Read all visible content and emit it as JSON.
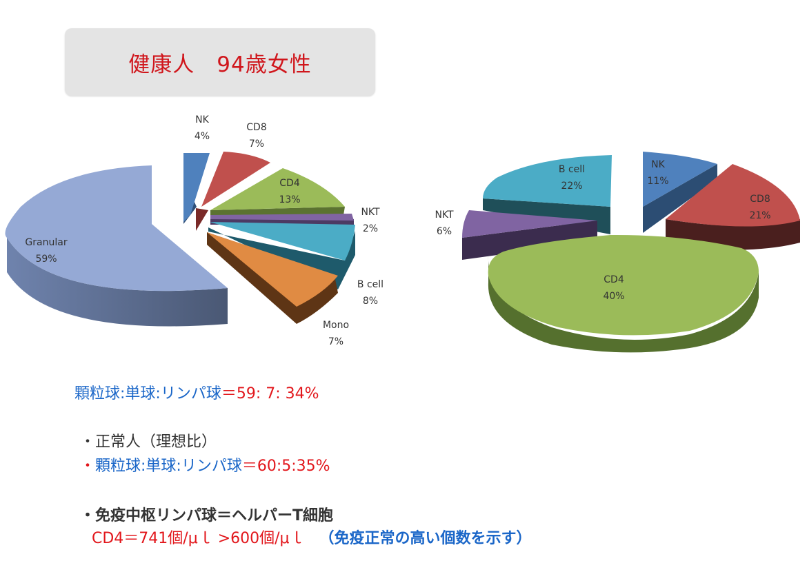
{
  "title": "健康人　94歳女性",
  "chart_data": [
    {
      "type": "pie",
      "slices": [
        {
          "name": "NK",
          "label": "4%",
          "value": 4,
          "color": "#4f81bd"
        },
        {
          "name": "CD8",
          "label": "7%",
          "value": 7,
          "color": "#c0504d"
        },
        {
          "name": "CD4",
          "label": "13%",
          "value": 13,
          "color": "#9bbb59"
        },
        {
          "name": "NKT",
          "label": "2%",
          "value": 2,
          "color": "#8064a2"
        },
        {
          "name": "B cell",
          "label": "8%",
          "value": 8,
          "color": "#4bacc6"
        },
        {
          "name": "Mono",
          "label": "7%",
          "value": 7,
          "color": "#f79646"
        },
        {
          "name": "Granular",
          "label": "59%",
          "value": 59,
          "color": "#95a9d5"
        }
      ]
    },
    {
      "type": "pie",
      "slices": [
        {
          "name": "NK",
          "label": "11%",
          "value": 11,
          "color": "#4f81bd"
        },
        {
          "name": "CD8",
          "label": "21%",
          "value": 21,
          "color": "#c0504d"
        },
        {
          "name": "CD4",
          "label": "40%",
          "value": 40,
          "color": "#9bbb59"
        },
        {
          "name": "NKT",
          "label": "6%",
          "value": 6,
          "color": "#8064a2"
        },
        {
          "name": "B cell",
          "label": "22%",
          "value": 22,
          "color": "#4bacc6"
        }
      ]
    }
  ],
  "notes": {
    "ratio1_label": "顆粒球:単球:リンパ球",
    "ratio1_value": "＝59: 7: 34%",
    "normal_heading": "・正常人（理想比）",
    "bullet": "・",
    "ratio2_label": "顆粒球:単球:リンパ球",
    "ratio2_value": "＝60:5:35%",
    "helper_line": "・免疫中枢リンパ球＝ヘルパーT細胞",
    "cd4_line": "CD4＝741個/μｌ >600個/μｌ",
    "cd4_note": "（免疫正常の高い個数を示す）"
  }
}
